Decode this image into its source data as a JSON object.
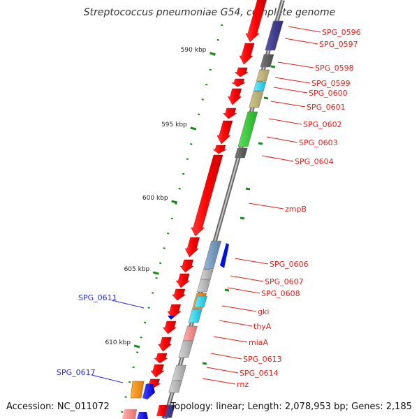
{
  "title": "Streptococcus pneumoniae G54, complete genome",
  "footer": {
    "accession": "Accession: NC_011072",
    "topology": "Topology: linear; Length: 2,078,953 bp; Genes: 2,185"
  },
  "scale_labels": [
    "590 kbp",
    "595 kbp",
    "600 kbp",
    "605 kbp",
    "610 kbp"
  ],
  "genes_right": [
    "SPG_0596",
    "SPG_0597",
    "SPG_0598",
    "SPG_0599",
    "SPG_0600",
    "SPG_0601",
    "SPG_0602",
    "SPG_0603",
    "SPG_0604",
    "zmpB",
    "SPG_0606",
    "SPG_0607",
    "SPG_0608",
    "gki",
    "thyA",
    "miaA",
    "SPG_0613",
    "SPG_0614",
    "rnz"
  ],
  "genes_left": [
    "SPG_0611",
    "SPG_0617"
  ],
  "colors": {
    "forward_gene": "#ff0000",
    "label_red": "#e0201c",
    "label_blue": "#2a2ad0",
    "tick_green": "#1a8a1a",
    "backbone": "#888888"
  }
}
